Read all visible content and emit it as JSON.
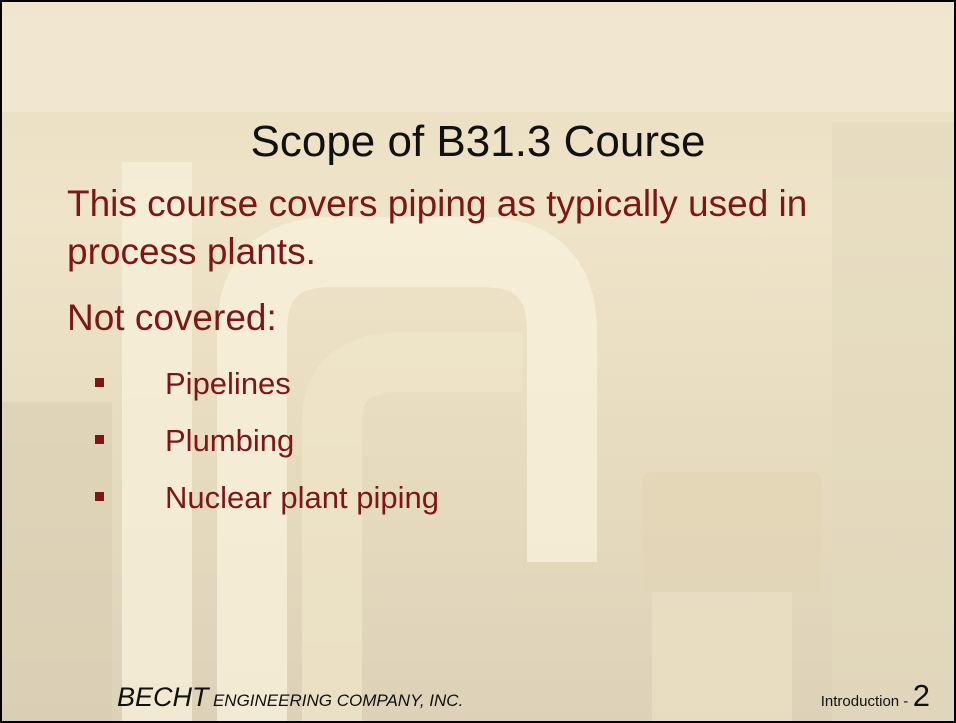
{
  "slide": {
    "title": "Scope of B31.3 Course",
    "paragraphs": [
      "This course covers piping as typically used in process plants.",
      "Not covered:"
    ],
    "bullets": [
      "Pipelines",
      "Plumbing",
      "Nuclear plant piping"
    ],
    "footer": {
      "company_main": "BECHT",
      "company_rest": "ENGINEERING COMPANY, INC.",
      "section": "Introduction -",
      "page": "2"
    }
  }
}
